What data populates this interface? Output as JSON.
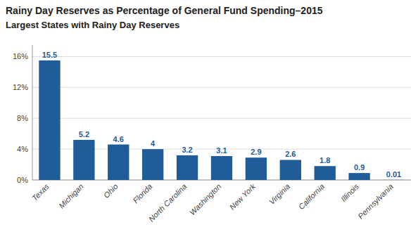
{
  "chart_data": {
    "type": "bar",
    "title": "Rainy Day Reserves as Percentage of General Fund Spending–2015",
    "subtitle": "Largest States with Rainy Day Reserves",
    "categories": [
      "Texas",
      "Michigan",
      "Ohio",
      "Florida",
      "North Carolina",
      "Washington",
      "New York",
      "Virginia",
      "California",
      "Illinois",
      "Pennsylvania"
    ],
    "values": [
      15.5,
      5.2,
      4.6,
      4.0,
      3.2,
      3.1,
      2.9,
      2.6,
      1.8,
      0.9,
      0.01
    ],
    "color": "#1F5C99",
    "ylim": [
      0,
      17.5
    ],
    "yticks": [
      {
        "value": 0,
        "label": "0%"
      },
      {
        "value": 4,
        "label": "4%"
      },
      {
        "value": 8,
        "label": "8%"
      },
      {
        "value": 12,
        "label": "12%"
      },
      {
        "value": 16,
        "label": "16%"
      }
    ],
    "grid": true,
    "data_labels": true
  }
}
